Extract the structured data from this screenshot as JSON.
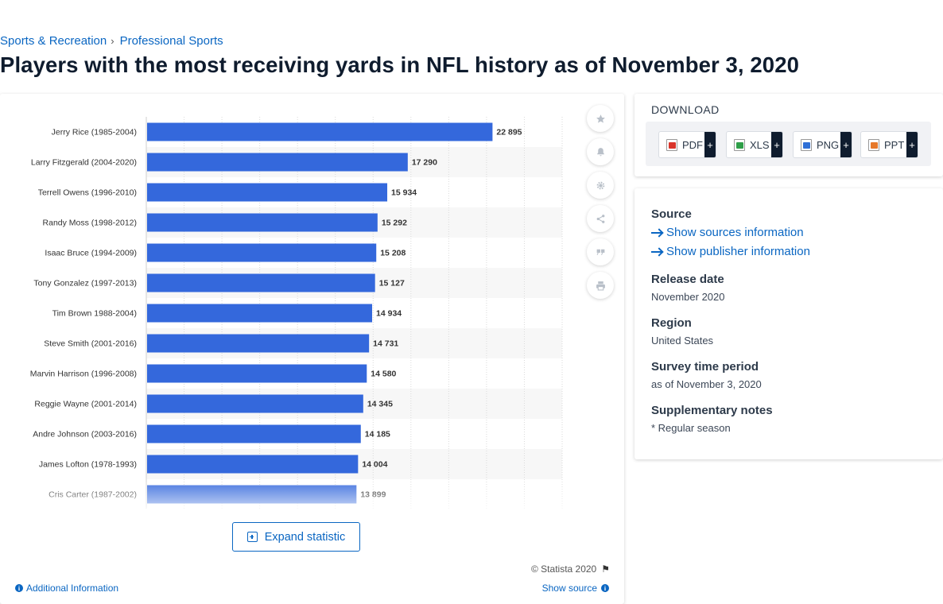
{
  "breadcrumb": {
    "items": [
      "Sports & Recreation",
      "Professional Sports"
    ],
    "separator": "›"
  },
  "page": {
    "title": "Players with the most receiving yards in NFL history as of November 3, 2020"
  },
  "toolbar": {
    "icons": [
      "star-icon",
      "bell-icon",
      "gear-icon",
      "share-icon",
      "quote-icon",
      "print-icon"
    ]
  },
  "chart_data": {
    "type": "bar",
    "orientation": "horizontal",
    "title": "",
    "xlabel": "",
    "ylabel": "",
    "bar_color": "#3468dc",
    "value_format": "space-thousands",
    "xlim": [
      0,
      27500
    ],
    "grid": true,
    "categories": [
      "Jerry Rice (1985-2004)",
      "Larry Fitzgerald (2004-2020)",
      "Terrell Owens (1996-2010)",
      "Randy Moss (1998-2012)",
      "Isaac Bruce (1994-2009)",
      "Tony Gonzalez (1997-2013)",
      "Tim Brown 1988-2004)",
      "Steve Smith (2001-2016)",
      "Marvin Harrison (1996-2008)",
      "Reggie Wayne (2001-2014)",
      "Andre Johnson (2003-2016)",
      "James Lofton (1978-1993)",
      "Cris Carter (1987-2002)"
    ],
    "values": [
      22895,
      17290,
      15934,
      15292,
      15208,
      15127,
      14934,
      14731,
      14580,
      14345,
      14185,
      14004,
      13899
    ],
    "value_labels": [
      "22 895",
      "17 290",
      "15 934",
      "15 292",
      "15 208",
      "15 127",
      "14 934",
      "14 731",
      "14 580",
      "14 345",
      "14 185",
      "14 004",
      "13 899"
    ]
  },
  "expand": {
    "label": "Expand statistic"
  },
  "footer": {
    "copyright": "© Statista 2020",
    "additional_info": "Additional Information",
    "show_source": "Show source"
  },
  "download": {
    "title": "DOWNLOAD",
    "buttons": [
      {
        "label": "PDF",
        "color": "#d9352b"
      },
      {
        "label": "XLS",
        "color": "#2e9e48"
      },
      {
        "label": "PNG",
        "color": "#2f6fd6"
      },
      {
        "label": "PPT",
        "color": "#e6782a"
      }
    ],
    "plus": "+"
  },
  "info": {
    "source_heading": "Source",
    "show_sources": "Show sources information",
    "show_publisher": "Show publisher information",
    "release_heading": "Release date",
    "release_value": "November 2020",
    "region_heading": "Region",
    "region_value": "United States",
    "survey_heading": "Survey time period",
    "survey_value": "as of November 3, 2020",
    "notes_heading": "Supplementary notes",
    "notes_value": "* Regular season"
  }
}
